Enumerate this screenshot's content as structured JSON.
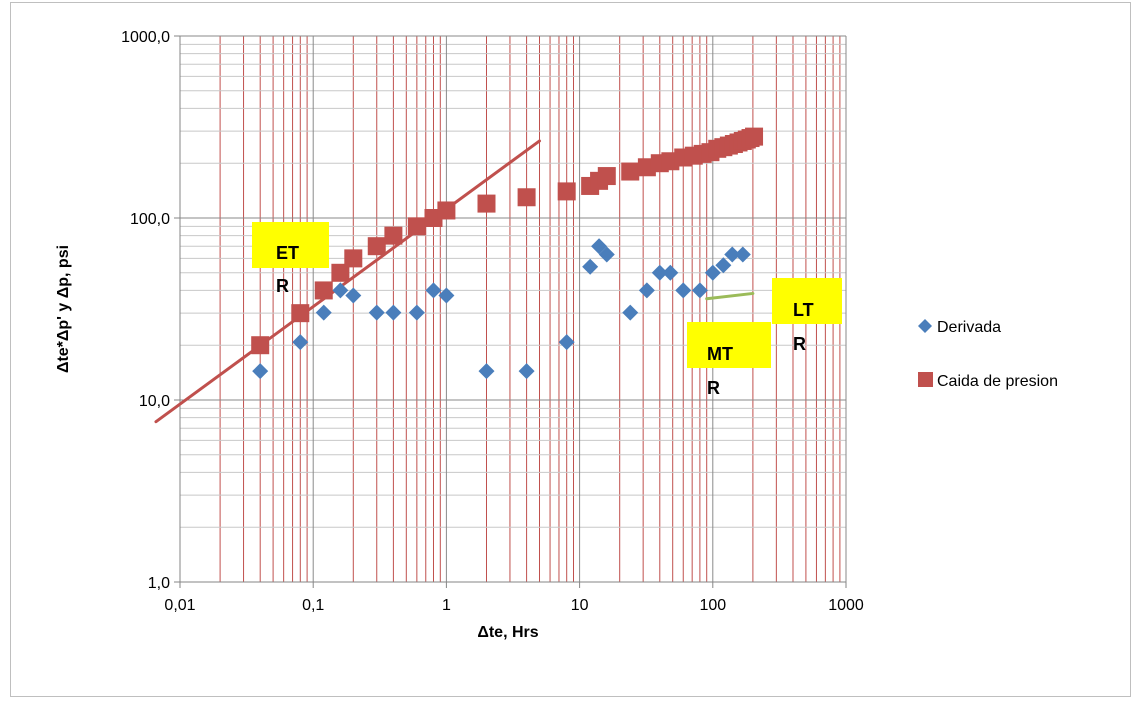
{
  "chart_data": {
    "type": "scatter",
    "title": "",
    "xlabel": "Δte, Hrs",
    "ylabel": "Δte*Δp' y Δp, psi",
    "x_scale": "log",
    "y_scale": "log",
    "xlim": [
      0.01,
      1000
    ],
    "ylim": [
      1,
      1000
    ],
    "grid": true,
    "legend_position": "right",
    "x_tick_labels": [
      "0,01",
      "0,1",
      "1",
      "10",
      "100",
      "1000"
    ],
    "y_tick_labels": [
      "1,0",
      "10,0",
      "100,0",
      "1000,0"
    ],
    "colors": {
      "derivada": "#4a7ebb",
      "caida": "#c0504d",
      "grid": "#c0504d",
      "trendline": "#c0504d",
      "mtr_line": "#9bbb59",
      "annotation_bg": "#ffff00"
    },
    "series": [
      {
        "name": "Derivada",
        "marker": "diamond",
        "x": [
          0.04,
          0.08,
          0.12,
          0.16,
          0.2,
          0.3,
          0.4,
          0.6,
          0.8,
          1,
          2,
          4,
          8,
          12,
          14,
          16,
          24,
          32,
          40,
          48,
          60,
          80,
          100,
          120,
          140,
          168
        ],
        "y": [
          14.4,
          20.8,
          30.2,
          40,
          37.5,
          30.2,
          30.2,
          30.2,
          40,
          37.5,
          14.4,
          14.4,
          20.8,
          54,
          70,
          63,
          30.2,
          40,
          50,
          50,
          40,
          40,
          50,
          55,
          63,
          63
        ]
      },
      {
        "name": "Caida de presion",
        "marker": "square",
        "x": [
          0.04,
          0.08,
          0.12,
          0.16,
          0.2,
          0.3,
          0.4,
          0.6,
          0.8,
          1,
          2,
          4,
          8,
          12,
          14,
          16,
          24,
          32,
          40,
          48,
          60,
          72,
          84,
          96,
          108,
          120,
          132,
          144,
          156,
          168,
          180,
          192,
          204
        ],
        "y": [
          20,
          30,
          40,
          50,
          60,
          70,
          80,
          90,
          100,
          110,
          120,
          130,
          140,
          150,
          160,
          170,
          180,
          190,
          200,
          205,
          215,
          220,
          225,
          230,
          240,
          245,
          250,
          255,
          260,
          265,
          270,
          275,
          280
        ]
      }
    ],
    "lines": [
      {
        "name": "ETR slope",
        "x": [
          0.0066,
          5
        ],
        "y": [
          7.6,
          265
        ]
      },
      {
        "name": "MTR slope",
        "x": [
          90,
          200
        ],
        "y": [
          36,
          38.5
        ]
      }
    ],
    "annotations": [
      {
        "line1": "ET",
        "line2": "R"
      },
      {
        "line1": "LT",
        "line2": "R"
      },
      {
        "line1": "MT",
        "line2": "R"
      }
    ]
  }
}
